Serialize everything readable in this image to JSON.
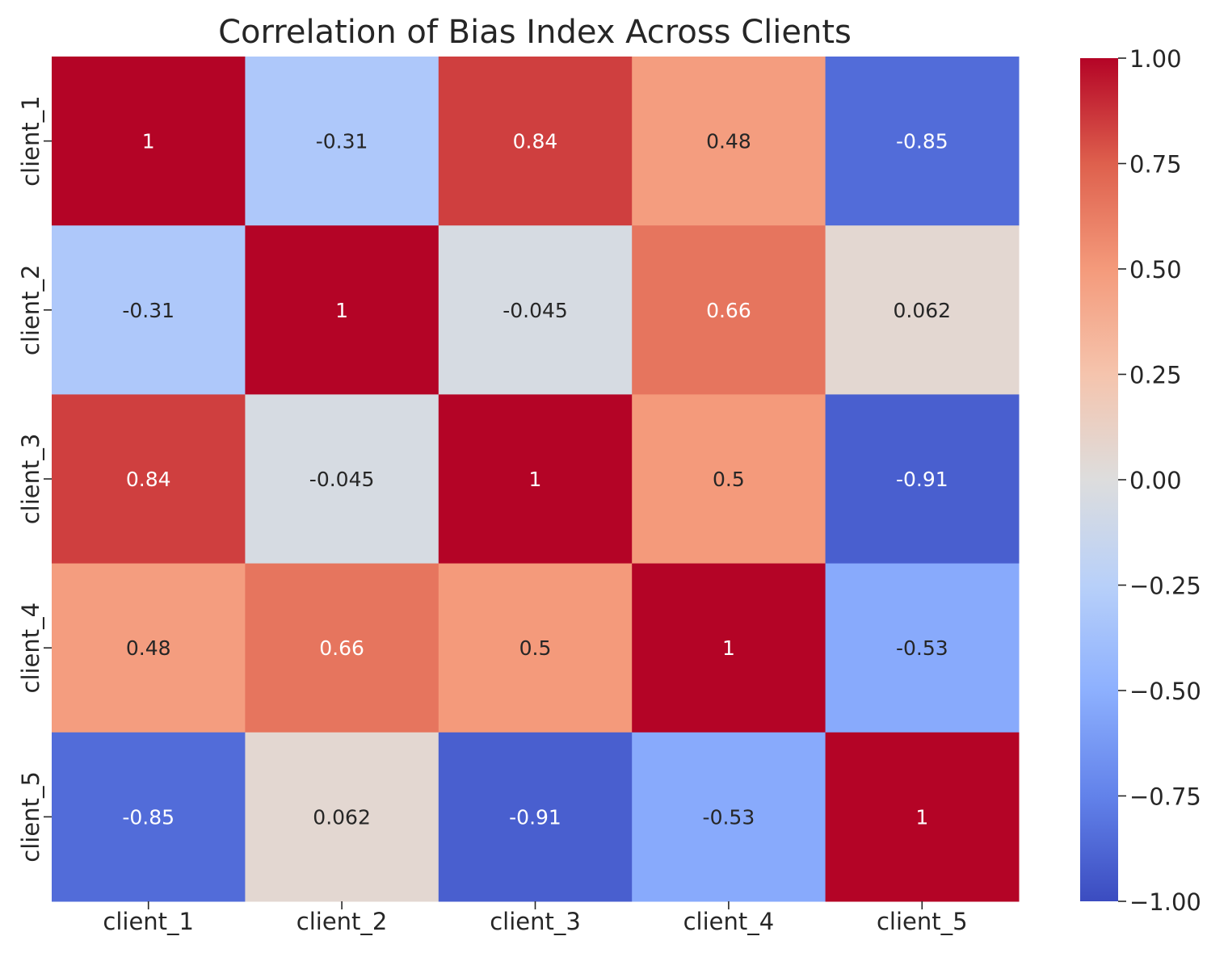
{
  "chart_data": {
    "type": "heatmap",
    "title": "Correlation of Bias Index Across Clients",
    "xlabel": "",
    "ylabel": "",
    "x_categories": [
      "client_1",
      "client_2",
      "client_3",
      "client_4",
      "client_5"
    ],
    "y_categories": [
      "client_1",
      "client_2",
      "client_3",
      "client_4",
      "client_5"
    ],
    "values": [
      [
        1,
        -0.31,
        0.84,
        0.48,
        -0.85
      ],
      [
        -0.31,
        1,
        -0.045,
        0.66,
        0.062
      ],
      [
        0.84,
        -0.045,
        1,
        0.5,
        -0.91
      ],
      [
        0.48,
        0.66,
        0.5,
        1,
        -0.53
      ],
      [
        -0.85,
        0.062,
        -0.91,
        -0.53,
        1
      ]
    ],
    "cell_labels": [
      [
        "1",
        "-0.31",
        "0.84",
        "0.48",
        "-0.85"
      ],
      [
        "-0.31",
        "1",
        "-0.045",
        "0.66",
        "0.062"
      ],
      [
        "0.84",
        "-0.045",
        "1",
        "0.5",
        "-0.91"
      ],
      [
        "0.48",
        "0.66",
        "0.5",
        "1",
        "-0.53"
      ],
      [
        "-0.85",
        "0.062",
        "-0.91",
        "-0.53",
        "1"
      ]
    ],
    "colorbar": {
      "range": [
        -1.0,
        1.0
      ],
      "ticks": [
        1.0,
        0.75,
        0.5,
        0.25,
        0.0,
        -0.25,
        -0.5,
        -0.75,
        -1.0
      ],
      "tick_labels": [
        "1.00",
        "0.75",
        "0.50",
        "0.25",
        "0.00",
        "−0.25",
        "−0.50",
        "−0.75",
        "−1.00"
      ],
      "colormap": "coolwarm"
    }
  }
}
